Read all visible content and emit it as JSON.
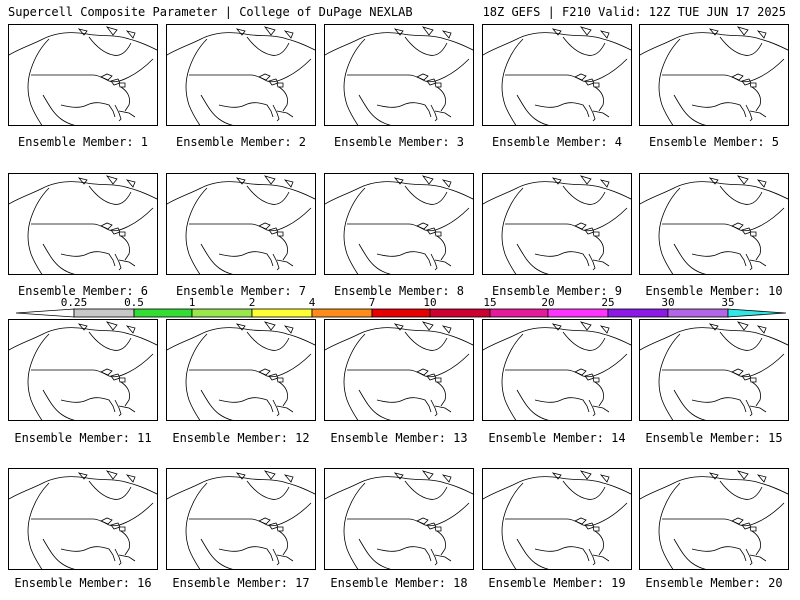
{
  "header": {
    "left_title": "Supercell Composite Parameter | College of DuPage NEXLAB",
    "right_title": "18Z GEFS | F210 Valid: 12Z TUE JUN 17 2025"
  },
  "member_label": "Ensemble Member:",
  "members": [
    1,
    2,
    3,
    4,
    5,
    6,
    7,
    8,
    9,
    10,
    11,
    12,
    13,
    14,
    15,
    16,
    17,
    18,
    19,
    20
  ],
  "colorbar": {
    "ticks": [
      "0.25",
      "0.5",
      "1",
      "2",
      "4",
      "7",
      "10",
      "15",
      "20",
      "25",
      "30",
      "35"
    ],
    "colors": [
      "#c8c8c8",
      "#33dd33",
      "#99e64d",
      "#ffff33",
      "#ff8c1a",
      "#e60000",
      "#cc0033",
      "#e6199a",
      "#ff33ff",
      "#8c19e6",
      "#b266e6",
      "#33e6e6"
    ]
  }
}
